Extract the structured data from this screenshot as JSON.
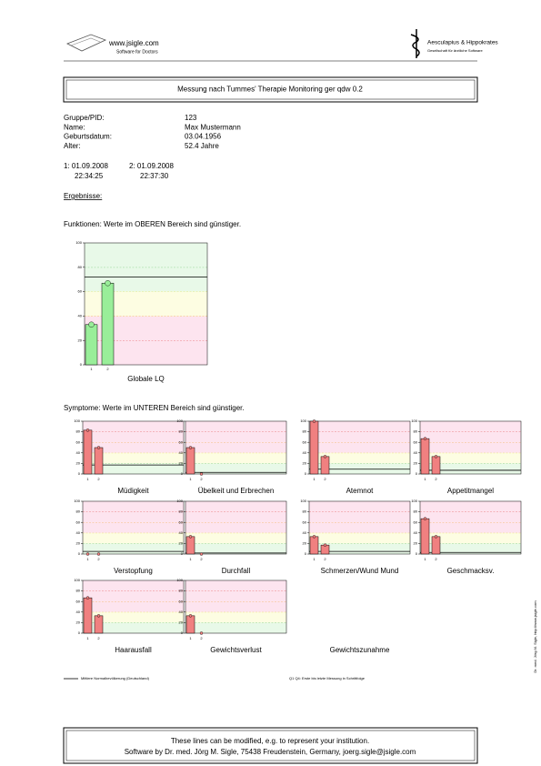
{
  "header": {
    "logo_left": "www.jsigle.com",
    "logo_left_sub": "Software for Doctors",
    "logo_right": "Aesculapius & Hippokrates",
    "logo_right_sub": "Gesellschaft für ärztliche Software"
  },
  "title": "Messung nach Tummes' Therapie Monitoring ger qdw 0.2",
  "patient": {
    "rows": [
      [
        "Gruppe/PID:",
        "123"
      ],
      [
        "Name:",
        "Max Mustermann"
      ],
      [
        "Geburtsdatum:",
        "03.04.1956"
      ],
      [
        "Alter:",
        "52.4 Jahre"
      ]
    ]
  },
  "measurements": [
    {
      "label": "1: 01.09.2008",
      "time": "22:34:25"
    },
    {
      "label": "2: 01.09.2008",
      "time": "22:37:30"
    }
  ],
  "results_heading": "Ergebnisse:",
  "functions_note": "Funktionen: Werte im OBEREN Bereich sind günstiger.",
  "symptoms_note": "Symptome: Werte im UNTEREN Bereich sind günstiger.",
  "legend": {
    "reference": "Mittlere Normalbevölkerung (Deutschland)",
    "measurements": "Q1 Q4: Erste bis letzte Messung in Schrittfolge"
  },
  "footer": {
    "line1": "These lines can be modified, e.g. to represent your institution.",
    "line2": "Software by Dr. med. Jörg M. Sigle, 75438 Freudenstein, Germany, joerg.sigle@jsigle.com"
  },
  "side_note": "Dr. med. Jörg M. Sigle, http://www.jsigle.com",
  "chart_data": [
    {
      "type": "bar",
      "title": "Globale LQ",
      "categories": [
        "1",
        "2"
      ],
      "values": [
        33,
        67
      ],
      "reference_line": 72,
      "color": "#99ee99",
      "ylim": [
        0,
        100
      ],
      "yticks": [
        0,
        20,
        40,
        60,
        80,
        100
      ],
      "bands": [
        {
          "from": 0,
          "to": 20,
          "fill": "#fde4ef",
          "stroke": "#e04040"
        },
        {
          "from": 20,
          "to": 40,
          "fill": "#fde4ef",
          "stroke": "#f0a030"
        },
        {
          "from": 40,
          "to": 60,
          "fill": "#fdfde2",
          "stroke": "#e8e040"
        },
        {
          "from": 60,
          "to": 80,
          "fill": "#e8f9e8",
          "stroke": "#60c060"
        },
        {
          "from": 80,
          "to": 100,
          "fill": "#e8f9e8",
          "stroke": "#60c060"
        }
      ]
    },
    {
      "type": "bar",
      "title": "Müdigkeit",
      "categories": [
        "1",
        "2"
      ],
      "values": [
        83,
        50
      ],
      "reference_line": 17,
      "color": "#f08080",
      "ylim": [
        0,
        100
      ],
      "yticks": [
        0,
        20,
        40,
        60,
        80,
        100
      ],
      "bands": [
        {
          "from": 0,
          "to": 20,
          "fill": "#e8f9e8",
          "stroke": "#60c060"
        },
        {
          "from": 20,
          "to": 40,
          "fill": "#fdfde2",
          "stroke": "#e8e040"
        },
        {
          "from": 40,
          "to": 60,
          "fill": "#fde4ef",
          "stroke": "#f0a030"
        },
        {
          "from": 60,
          "to": 80,
          "fill": "#fde4ef",
          "stroke": "#e04040"
        },
        {
          "from": 80,
          "to": 100,
          "fill": "#fde4ef",
          "stroke": "#e04040"
        }
      ]
    },
    {
      "type": "bar",
      "title": "Übelkeit und Erbrechen",
      "categories": [
        "1",
        "2"
      ],
      "values": [
        50,
        0
      ],
      "reference_line": 3,
      "color": "#f08080",
      "ylim": [
        0,
        100
      ],
      "yticks": [
        0,
        20,
        40,
        60,
        80,
        100
      ],
      "bands": [
        {
          "from": 0,
          "to": 20,
          "fill": "#e8f9e8",
          "stroke": "#60c060"
        },
        {
          "from": 20,
          "to": 40,
          "fill": "#fdfde2",
          "stroke": "#e8e040"
        },
        {
          "from": 40,
          "to": 60,
          "fill": "#fde4ef",
          "stroke": "#f0a030"
        },
        {
          "from": 60,
          "to": 80,
          "fill": "#fde4ef",
          "stroke": "#e04040"
        },
        {
          "from": 80,
          "to": 100,
          "fill": "#fde4ef",
          "stroke": "#e04040"
        }
      ]
    },
    {
      "type": "bar",
      "title": "Atemnot",
      "categories": [
        "1",
        "2"
      ],
      "values": [
        100,
        33
      ],
      "reference_line": 9,
      "color": "#f08080",
      "ylim": [
        0,
        100
      ],
      "yticks": [
        0,
        20,
        40,
        60,
        80,
        100
      ],
      "bands": [
        {
          "from": 0,
          "to": 20,
          "fill": "#e8f9e8",
          "stroke": "#60c060"
        },
        {
          "from": 20,
          "to": 40,
          "fill": "#fdfde2",
          "stroke": "#e8e040"
        },
        {
          "from": 40,
          "to": 60,
          "fill": "#fde4ef",
          "stroke": "#f0a030"
        },
        {
          "from": 60,
          "to": 80,
          "fill": "#fde4ef",
          "stroke": "#e04040"
        },
        {
          "from": 80,
          "to": 100,
          "fill": "#fde4ef",
          "stroke": "#e04040"
        }
      ]
    },
    {
      "type": "bar",
      "title": "Appetitmangel",
      "categories": [
        "1",
        "2"
      ],
      "values": [
        67,
        33
      ],
      "reference_line": 7,
      "color": "#f08080",
      "ylim": [
        0,
        100
      ],
      "yticks": [
        0,
        20,
        40,
        60,
        80,
        100
      ],
      "bands": [
        {
          "from": 0,
          "to": 20,
          "fill": "#e8f9e8",
          "stroke": "#60c060"
        },
        {
          "from": 20,
          "to": 40,
          "fill": "#fdfde2",
          "stroke": "#e8e040"
        },
        {
          "from": 40,
          "to": 60,
          "fill": "#fde4ef",
          "stroke": "#f0a030"
        },
        {
          "from": 60,
          "to": 80,
          "fill": "#fde4ef",
          "stroke": "#e04040"
        },
        {
          "from": 80,
          "to": 100,
          "fill": "#fde4ef",
          "stroke": "#e04040"
        }
      ]
    },
    {
      "type": "bar",
      "title": "Verstopfung",
      "categories": [
        "1",
        "2"
      ],
      "values": [
        0,
        0
      ],
      "reference_line": 5,
      "color": "#f08080",
      "ylim": [
        0,
        100
      ],
      "yticks": [
        0,
        20,
        40,
        60,
        80,
        100
      ],
      "bands": [
        {
          "from": 0,
          "to": 20,
          "fill": "#e8f9e8",
          "stroke": "#60c060"
        },
        {
          "from": 20,
          "to": 40,
          "fill": "#fdfde2",
          "stroke": "#e8e040"
        },
        {
          "from": 40,
          "to": 60,
          "fill": "#fde4ef",
          "stroke": "#f0a030"
        },
        {
          "from": 60,
          "to": 80,
          "fill": "#fde4ef",
          "stroke": "#e04040"
        },
        {
          "from": 80,
          "to": 100,
          "fill": "#fde4ef",
          "stroke": "#e04040"
        }
      ]
    },
    {
      "type": "bar",
      "title": "Durchfall",
      "categories": [
        "1",
        "2"
      ],
      "values": [
        33,
        0
      ],
      "reference_line": 2,
      "color": "#f08080",
      "ylim": [
        0,
        100
      ],
      "yticks": [
        0,
        20,
        40,
        60,
        80,
        100
      ],
      "bands": [
        {
          "from": 0,
          "to": 20,
          "fill": "#e8f9e8",
          "stroke": "#60c060"
        },
        {
          "from": 20,
          "to": 40,
          "fill": "#fdfde2",
          "stroke": "#e8e040"
        },
        {
          "from": 40,
          "to": 60,
          "fill": "#fde4ef",
          "stroke": "#f0a030"
        },
        {
          "from": 60,
          "to": 80,
          "fill": "#fde4ef",
          "stroke": "#e04040"
        },
        {
          "from": 80,
          "to": 100,
          "fill": "#fde4ef",
          "stroke": "#e04040"
        }
      ]
    },
    {
      "type": "bar",
      "title": "Schmerzen/Wund Mund",
      "categories": [
        "1",
        "2"
      ],
      "values": [
        33,
        17
      ],
      "reference_line": 5,
      "color": "#f08080",
      "ylim": [
        0,
        100
      ],
      "yticks": [
        0,
        20,
        40,
        60,
        80,
        100
      ],
      "bands": [
        {
          "from": 0,
          "to": 20,
          "fill": "#e8f9e8",
          "stroke": "#60c060"
        },
        {
          "from": 20,
          "to": 40,
          "fill": "#fdfde2",
          "stroke": "#e8e040"
        },
        {
          "from": 40,
          "to": 60,
          "fill": "#fde4ef",
          "stroke": "#f0a030"
        },
        {
          "from": 60,
          "to": 80,
          "fill": "#fde4ef",
          "stroke": "#e04040"
        },
        {
          "from": 80,
          "to": 100,
          "fill": "#fde4ef",
          "stroke": "#e04040"
        }
      ]
    },
    {
      "type": "bar",
      "title": "Geschmacksv.",
      "categories": [
        "1",
        "2"
      ],
      "values": [
        67,
        33
      ],
      "reference_line": 3,
      "color": "#f08080",
      "ylim": [
        0,
        100
      ],
      "yticks": [
        0,
        20,
        40,
        60,
        80,
        100
      ],
      "bands": [
        {
          "from": 0,
          "to": 20,
          "fill": "#e8f9e8",
          "stroke": "#60c060"
        },
        {
          "from": 20,
          "to": 40,
          "fill": "#fdfde2",
          "stroke": "#e8e040"
        },
        {
          "from": 40,
          "to": 60,
          "fill": "#fde4ef",
          "stroke": "#f0a030"
        },
        {
          "from": 60,
          "to": 80,
          "fill": "#fde4ef",
          "stroke": "#e04040"
        },
        {
          "from": 80,
          "to": 100,
          "fill": "#fde4ef",
          "stroke": "#e04040"
        }
      ]
    },
    {
      "type": "bar",
      "title": "Haarausfall",
      "categories": [
        "1",
        "2"
      ],
      "values": [
        67,
        33
      ],
      "reference_line": null,
      "color": "#f08080",
      "ylim": [
        0,
        100
      ],
      "yticks": [
        0,
        20,
        40,
        60,
        80,
        100
      ],
      "bands": [
        {
          "from": 0,
          "to": 20,
          "fill": "#e8f9e8",
          "stroke": "#60c060"
        },
        {
          "from": 20,
          "to": 40,
          "fill": "#fdfde2",
          "stroke": "#e8e040"
        },
        {
          "from": 40,
          "to": 60,
          "fill": "#fde4ef",
          "stroke": "#f0a030"
        },
        {
          "from": 60,
          "to": 80,
          "fill": "#fde4ef",
          "stroke": "#e04040"
        },
        {
          "from": 80,
          "to": 100,
          "fill": "#fde4ef",
          "stroke": "#e04040"
        }
      ]
    },
    {
      "type": "bar",
      "title": "Gewichtsverlust",
      "categories": [
        "1",
        "2"
      ],
      "values": [
        33,
        0
      ],
      "reference_line": null,
      "color": "#f08080",
      "ylim": [
        0,
        100
      ],
      "yticks": [
        0,
        20,
        40,
        60,
        80,
        100
      ],
      "bands": [
        {
          "from": 0,
          "to": 20,
          "fill": "#e8f9e8",
          "stroke": "#60c060"
        },
        {
          "from": 20,
          "to": 40,
          "fill": "#fdfde2",
          "stroke": "#e8e040"
        },
        {
          "from": 40,
          "to": 60,
          "fill": "#fde4ef",
          "stroke": "#f0a030"
        },
        {
          "from": 60,
          "to": 80,
          "fill": "#fde4ef",
          "stroke": "#e04040"
        },
        {
          "from": 80,
          "to": 100,
          "fill": "#fde4ef",
          "stroke": "#e04040"
        }
      ]
    },
    {
      "type": "bar",
      "title": "Gewichtszunahme",
      "categories": [
        null,
        null
      ],
      "values": [
        null,
        null
      ]
    }
  ]
}
